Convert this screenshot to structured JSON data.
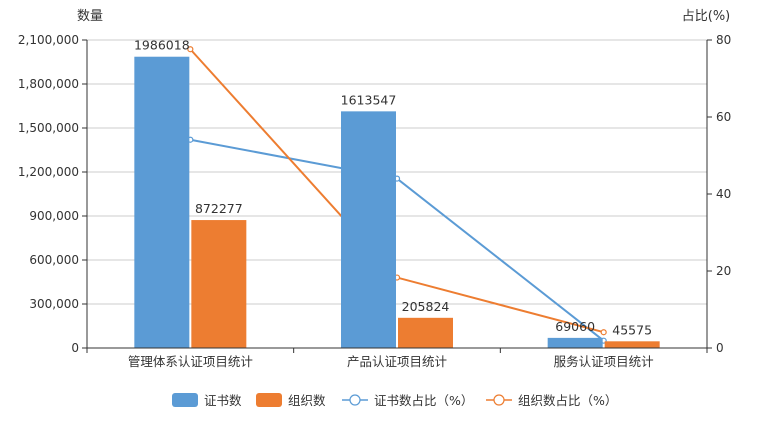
{
  "chart_data": {
    "type": "bar+line",
    "title": "",
    "categories": [
      "管理体系认证项目统计",
      "产品认证项目统计",
      "服务认证项目统计"
    ],
    "series": [
      {
        "name": "证书数",
        "type": "bar",
        "axis": "left",
        "color": "#5b9bd5",
        "values": [
          1986018,
          1613547,
          69060
        ]
      },
      {
        "name": "组织数",
        "type": "bar",
        "axis": "left",
        "color": "#ed7d31",
        "values": [
          872277,
          205824,
          45575
        ]
      },
      {
        "name": "证书数占比（%）",
        "type": "line",
        "axis": "right",
        "color": "#5b9bd5",
        "values": [
          54.1,
          44.0,
          1.9
        ]
      },
      {
        "name": "组织数占比（%）",
        "type": "line",
        "axis": "right",
        "color": "#ed7d31",
        "values": [
          77.6,
          18.3,
          4.1
        ]
      }
    ],
    "left_axis": {
      "label": "数量",
      "ylim": [
        0,
        2100000
      ],
      "ticks": [
        0,
        300000,
        600000,
        900000,
        1200000,
        1500000,
        1800000,
        2100000
      ],
      "tick_labels": [
        "0",
        "300,000",
        "600,000",
        "900,000",
        "1,200,000",
        "1,500,000",
        "1,800,000",
        "2,100,000"
      ]
    },
    "right_axis": {
      "label": "占比(%)",
      "ylim": [
        0,
        80
      ],
      "ticks": [
        0,
        20,
        40,
        60,
        80
      ],
      "tick_labels": [
        "0",
        "20",
        "40",
        "60",
        "80"
      ]
    },
    "bar_labels": [
      [
        "1986018",
        "872277"
      ],
      [
        "1613547",
        "205824"
      ],
      [
        "69060",
        "45575"
      ]
    ],
    "grid": true,
    "legend_position": "bottom"
  },
  "legend": {
    "items": [
      {
        "label": "证书数",
        "kind": "rect",
        "color": "#5b9bd5"
      },
      {
        "label": "组织数",
        "kind": "rect",
        "color": "#ed7d31"
      },
      {
        "label": "证书数占比（%）",
        "kind": "line",
        "color": "#5b9bd5"
      },
      {
        "label": "组织数占比（%）",
        "kind": "line",
        "color": "#ed7d31"
      }
    ]
  }
}
